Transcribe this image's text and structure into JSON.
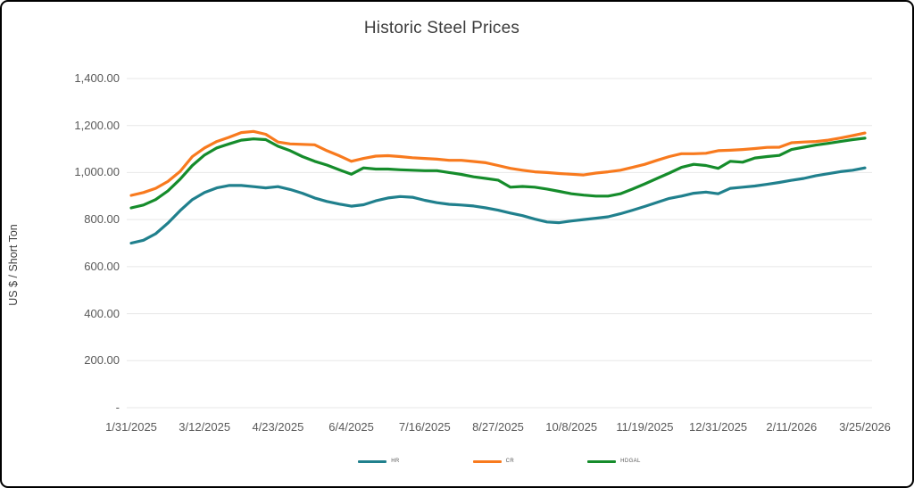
{
  "chart_data": {
    "type": "line",
    "title": "Historic Steel Prices",
    "ylabel": "US $ / Short Ton",
    "xlabel": "",
    "ylim": [
      0,
      1400
    ],
    "grid": "horizontal-only",
    "legend_position": "bottom",
    "title_color": "#3d3d3d",
    "axis_text_color": "#595959",
    "gridline_color": "#e7e7e7",
    "y_ticks": [
      {
        "label": "1,400.00",
        "value": 1400
      },
      {
        "label": "1,200.00",
        "value": 1200
      },
      {
        "label": "1,000.00",
        "value": 1000
      },
      {
        "label": "800.00",
        "value": 800
      },
      {
        "label": "600.00",
        "value": 600
      },
      {
        "label": "400.00",
        "value": 400
      },
      {
        "label": "200.00",
        "value": 200
      },
      {
        "label": "-",
        "value": 0
      }
    ],
    "x_tick_labels": [
      "1/31/2025",
      "3/12/2025",
      "4/23/2025",
      "6/4/2025",
      "7/16/2025",
      "8/27/2025",
      "10/8/2025",
      "11/19/2025",
      "12/31/2025",
      "2/11/2026",
      "3/25/2026"
    ],
    "x_tick_interval": 6,
    "series": [
      {
        "name": "HR",
        "color": "#20808D",
        "values": [
          700,
          712,
          740,
          785,
          838,
          885,
          915,
          935,
          945,
          945,
          940,
          935,
          940,
          928,
          912,
          892,
          877,
          866,
          857,
          863,
          880,
          892,
          898,
          895,
          882,
          872,
          865,
          862,
          858,
          850,
          840,
          828,
          817,
          802,
          790,
          787,
          794,
          800,
          806,
          812,
          825,
          840,
          856,
          873,
          890,
          900,
          912,
          917,
          910,
          933,
          938,
          943,
          950,
          958,
          967,
          975,
          987,
          995,
          1004,
          1010,
          1020
        ]
      },
      {
        "name": "CR",
        "color": "#F87A1E",
        "values": [
          903,
          915,
          933,
          962,
          1005,
          1068,
          1105,
          1132,
          1150,
          1170,
          1175,
          1163,
          1130,
          1122,
          1120,
          1118,
          1093,
          1072,
          1048,
          1060,
          1070,
          1072,
          1068,
          1063,
          1060,
          1057,
          1052,
          1052,
          1047,
          1042,
          1030,
          1018,
          1010,
          1003,
          1000,
          996,
          993,
          990,
          998,
          1003,
          1010,
          1022,
          1035,
          1052,
          1068,
          1080,
          1080,
          1082,
          1093,
          1095,
          1098,
          1102,
          1107,
          1108,
          1127,
          1130,
          1132,
          1138,
          1147,
          1157,
          1168
        ]
      },
      {
        "name": "HDGAL",
        "color": "#158C2B",
        "values": [
          850,
          862,
          885,
          922,
          972,
          1030,
          1075,
          1105,
          1122,
          1138,
          1143,
          1140,
          1112,
          1093,
          1068,
          1048,
          1032,
          1012,
          993,
          1020,
          1015,
          1015,
          1012,
          1010,
          1008,
          1008,
          1000,
          992,
          982,
          975,
          968,
          938,
          941,
          938,
          930,
          920,
          910,
          904,
          900,
          900,
          910,
          930,
          952,
          975,
          998,
          1022,
          1035,
          1030,
          1018,
          1048,
          1044,
          1062,
          1068,
          1073,
          1098,
          1108,
          1117,
          1124,
          1132,
          1140,
          1146
        ]
      }
    ]
  }
}
